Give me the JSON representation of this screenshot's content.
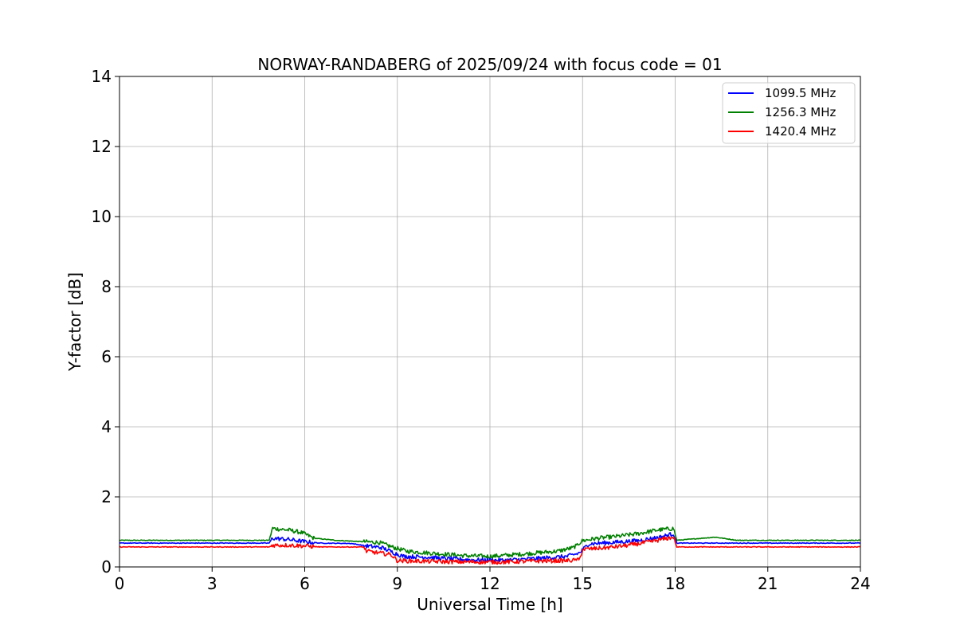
{
  "chart_data": {
    "type": "line",
    "title": "NORWAY-RANDABERG of 2025/09/24 with focus code = 01",
    "xlabel": "Universal Time [h]",
    "ylabel": "Y-factor [dB]",
    "xlim": [
      0,
      24
    ],
    "ylim": [
      0,
      14
    ],
    "xticks": [
      0,
      3,
      6,
      9,
      12,
      15,
      18,
      21,
      24
    ],
    "yticks": [
      0,
      2,
      4,
      6,
      8,
      10,
      12,
      14
    ],
    "grid": true,
    "legend_position": "top-right",
    "series": [
      {
        "name": "1099.5 MHz",
        "color": "#0000ff",
        "x": [
          0,
          2,
          4.85,
          4.95,
          5.5,
          6.0,
          6.5,
          7.5,
          8.0,
          8.5,
          8.9,
          9.2,
          10.0,
          10.5,
          11.5,
          12.5,
          13.5,
          14.5,
          14.9,
          15.2,
          16.0,
          16.8,
          17.5,
          17.95,
          18.05,
          20,
          22,
          24
        ],
        "y": [
          0.68,
          0.68,
          0.68,
          0.82,
          0.78,
          0.72,
          0.68,
          0.67,
          0.6,
          0.55,
          0.4,
          0.3,
          0.28,
          0.24,
          0.2,
          0.19,
          0.24,
          0.3,
          0.4,
          0.66,
          0.7,
          0.75,
          0.85,
          0.95,
          0.68,
          0.68,
          0.68,
          0.68
        ]
      },
      {
        "name": "1256.3 MHz",
        "color": "#008000",
        "x": [
          0,
          2,
          4.85,
          4.95,
          5.5,
          5.9,
          6.3,
          7.0,
          7.9,
          8.4,
          8.9,
          9.3,
          10.0,
          10.6,
          11.2,
          12.0,
          12.8,
          13.5,
          14.2,
          14.7,
          15.0,
          15.5,
          16.2,
          16.8,
          17.4,
          17.95,
          18.05,
          19.3,
          20,
          22,
          24
        ],
        "y": [
          0.76,
          0.76,
          0.76,
          1.1,
          1.05,
          0.98,
          0.82,
          0.76,
          0.72,
          0.7,
          0.55,
          0.45,
          0.4,
          0.36,
          0.32,
          0.3,
          0.35,
          0.4,
          0.45,
          0.55,
          0.75,
          0.82,
          0.88,
          0.95,
          1.05,
          1.1,
          0.76,
          0.85,
          0.76,
          0.76,
          0.76
        ]
      },
      {
        "name": "1420.4 MHz",
        "color": "#ff0000",
        "x": [
          0,
          2,
          4.85,
          4.95,
          5.5,
          6.0,
          6.5,
          7.9,
          8.0,
          8.4,
          8.8,
          9.0,
          9.5,
          10.5,
          11.5,
          12.5,
          13.5,
          14.5,
          14.9,
          15.0,
          15.8,
          16.5,
          17.2,
          17.95,
          18.05,
          20,
          22,
          24
        ],
        "y": [
          0.57,
          0.57,
          0.57,
          0.62,
          0.62,
          0.6,
          0.57,
          0.57,
          0.45,
          0.4,
          0.35,
          0.18,
          0.17,
          0.15,
          0.14,
          0.14,
          0.17,
          0.18,
          0.2,
          0.5,
          0.55,
          0.62,
          0.72,
          0.85,
          0.57,
          0.57,
          0.57,
          0.57
        ]
      }
    ]
  }
}
